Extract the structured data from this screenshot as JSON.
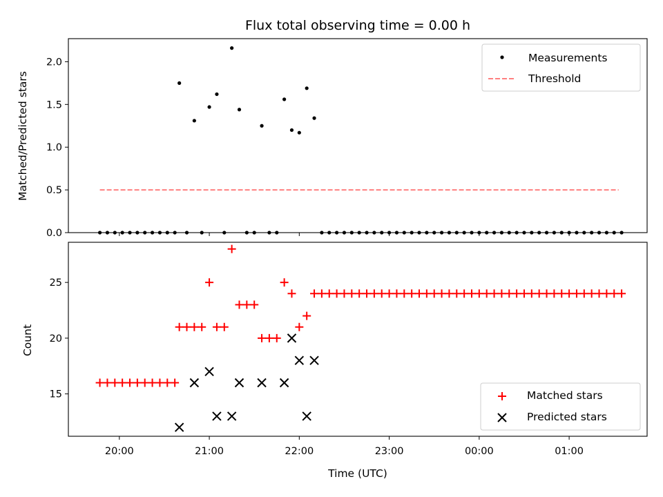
{
  "chart_data": [
    {
      "type": "scatter",
      "title": "Flux total observing time = 0.00 h",
      "ylabel": "Matched/Predicted stars",
      "xlabel": "",
      "ylim": [
        0,
        2.27
      ],
      "yticks": [
        0.0,
        0.5,
        1.0,
        1.5,
        2.0
      ],
      "ytick_labels": [
        "0.0",
        "0.5",
        "1.0",
        "1.5",
        "2.0"
      ],
      "legend_placement": "top-right",
      "series": [
        {
          "name": "Measurements",
          "kind": "dot",
          "color": "#000000",
          "points": [
            [
              "19:47",
              0
            ],
            [
              "19:52",
              0
            ],
            [
              "19:57",
              0
            ],
            [
              "20:02",
              0
            ],
            [
              "20:07",
              0
            ],
            [
              "20:12",
              0
            ],
            [
              "20:17",
              0
            ],
            [
              "20:22",
              0
            ],
            [
              "20:27",
              0
            ],
            [
              "20:32",
              0
            ],
            [
              "20:37",
              0
            ],
            [
              "20:40",
              1.75
            ],
            [
              "20:45",
              0
            ],
            [
              "20:50",
              1.31
            ],
            [
              "20:55",
              0
            ],
            [
              "21:00",
              1.47
            ],
            [
              "21:05",
              1.62
            ],
            [
              "21:10",
              0
            ],
            [
              "21:15",
              2.16
            ],
            [
              "21:20",
              1.44
            ],
            [
              "21:25",
              0
            ],
            [
              "21:30",
              0
            ],
            [
              "21:35",
              1.25
            ],
            [
              "21:40",
              0
            ],
            [
              "21:45",
              0
            ],
            [
              "21:50",
              1.56
            ],
            [
              "21:55",
              1.2
            ],
            [
              "22:00",
              1.17
            ],
            [
              "22:05",
              1.69
            ],
            [
              "22:10",
              1.34
            ],
            [
              "22:15",
              0
            ],
            [
              "22:20",
              0
            ],
            [
              "22:25",
              0
            ],
            [
              "22:30",
              0
            ],
            [
              "22:35",
              0
            ],
            [
              "22:40",
              0
            ],
            [
              "22:45",
              0
            ],
            [
              "22:50",
              0
            ],
            [
              "22:55",
              0
            ],
            [
              "23:00",
              0
            ],
            [
              "23:05",
              0
            ],
            [
              "23:10",
              0
            ],
            [
              "23:15",
              0
            ],
            [
              "23:20",
              0
            ],
            [
              "23:25",
              0
            ],
            [
              "23:30",
              0
            ],
            [
              "23:35",
              0
            ],
            [
              "23:40",
              0
            ],
            [
              "23:45",
              0
            ],
            [
              "23:50",
              0
            ],
            [
              "23:55",
              0
            ],
            [
              "00:00",
              0
            ],
            [
              "00:05",
              0
            ],
            [
              "00:10",
              0
            ],
            [
              "00:15",
              0
            ],
            [
              "00:20",
              0
            ],
            [
              "00:25",
              0
            ],
            [
              "00:30",
              0
            ],
            [
              "00:35",
              0
            ],
            [
              "00:40",
              0
            ],
            [
              "00:45",
              0
            ],
            [
              "00:50",
              0
            ],
            [
              "00:55",
              0
            ],
            [
              "01:00",
              0
            ],
            [
              "01:05",
              0
            ],
            [
              "01:10",
              0
            ],
            [
              "01:15",
              0
            ],
            [
              "01:20",
              0
            ],
            [
              "01:25",
              0
            ],
            [
              "01:30",
              0
            ],
            [
              "01:35",
              0
            ]
          ]
        },
        {
          "name": "Threshold",
          "kind": "dashed-line",
          "color": "#ff7f7f",
          "points": [
            [
              "19:47",
              0.5
            ],
            [
              "01:33",
              0.5
            ]
          ]
        }
      ]
    },
    {
      "type": "scatter",
      "title": "",
      "ylabel": "Count",
      "xlabel": "Time (UTC)",
      "ylim": [
        11.2,
        28.6
      ],
      "yticks": [
        15,
        20,
        25
      ],
      "ytick_labels": [
        "15",
        "20",
        "25"
      ],
      "xticks": [
        "20:00",
        "21:00",
        "22:00",
        "23:00",
        "00:00",
        "01:00"
      ],
      "legend_placement": "lower-right",
      "series": [
        {
          "name": "Matched stars",
          "kind": "plus",
          "color": "#ff0000",
          "points": [
            [
              "19:47",
              16
            ],
            [
              "19:52",
              16
            ],
            [
              "19:57",
              16
            ],
            [
              "20:02",
              16
            ],
            [
              "20:07",
              16
            ],
            [
              "20:12",
              16
            ],
            [
              "20:17",
              16
            ],
            [
              "20:22",
              16
            ],
            [
              "20:27",
              16
            ],
            [
              "20:32",
              16
            ],
            [
              "20:37",
              16
            ],
            [
              "20:40",
              21
            ],
            [
              "20:45",
              21
            ],
            [
              "20:50",
              21
            ],
            [
              "20:55",
              21
            ],
            [
              "21:00",
              25
            ],
            [
              "21:05",
              21
            ],
            [
              "21:10",
              21
            ],
            [
              "21:15",
              28
            ],
            [
              "21:20",
              23
            ],
            [
              "21:25",
              23
            ],
            [
              "21:30",
              23
            ],
            [
              "21:35",
              20
            ],
            [
              "21:40",
              20
            ],
            [
              "21:45",
              20
            ],
            [
              "21:50",
              25
            ],
            [
              "21:55",
              24
            ],
            [
              "22:00",
              21
            ],
            [
              "22:05",
              22
            ],
            [
              "22:10",
              24
            ],
            [
              "22:15",
              24
            ],
            [
              "22:20",
              24
            ],
            [
              "22:25",
              24
            ],
            [
              "22:30",
              24
            ],
            [
              "22:35",
              24
            ],
            [
              "22:40",
              24
            ],
            [
              "22:45",
              24
            ],
            [
              "22:50",
              24
            ],
            [
              "22:55",
              24
            ],
            [
              "23:00",
              24
            ],
            [
              "23:05",
              24
            ],
            [
              "23:10",
              24
            ],
            [
              "23:15",
              24
            ],
            [
              "23:20",
              24
            ],
            [
              "23:25",
              24
            ],
            [
              "23:30",
              24
            ],
            [
              "23:35",
              24
            ],
            [
              "23:40",
              24
            ],
            [
              "23:45",
              24
            ],
            [
              "23:50",
              24
            ],
            [
              "23:55",
              24
            ],
            [
              "00:00",
              24
            ],
            [
              "00:05",
              24
            ],
            [
              "00:10",
              24
            ],
            [
              "00:15",
              24
            ],
            [
              "00:20",
              24
            ],
            [
              "00:25",
              24
            ],
            [
              "00:30",
              24
            ],
            [
              "00:35",
              24
            ],
            [
              "00:40",
              24
            ],
            [
              "00:45",
              24
            ],
            [
              "00:50",
              24
            ],
            [
              "00:55",
              24
            ],
            [
              "01:00",
              24
            ],
            [
              "01:05",
              24
            ],
            [
              "01:10",
              24
            ],
            [
              "01:15",
              24
            ],
            [
              "01:20",
              24
            ],
            [
              "01:25",
              24
            ],
            [
              "01:30",
              24
            ],
            [
              "01:35",
              24
            ]
          ]
        },
        {
          "name": "Predicted stars",
          "kind": "x",
          "color": "#000000",
          "points": [
            [
              "20:40",
              12
            ],
            [
              "20:50",
              16
            ],
            [
              "21:00",
              17
            ],
            [
              "21:05",
              13
            ],
            [
              "21:15",
              13
            ],
            [
              "21:20",
              16
            ],
            [
              "21:35",
              16
            ],
            [
              "21:50",
              16
            ],
            [
              "21:55",
              20
            ],
            [
              "22:00",
              18
            ],
            [
              "22:05",
              13
            ],
            [
              "22:10",
              18
            ]
          ]
        }
      ]
    }
  ]
}
